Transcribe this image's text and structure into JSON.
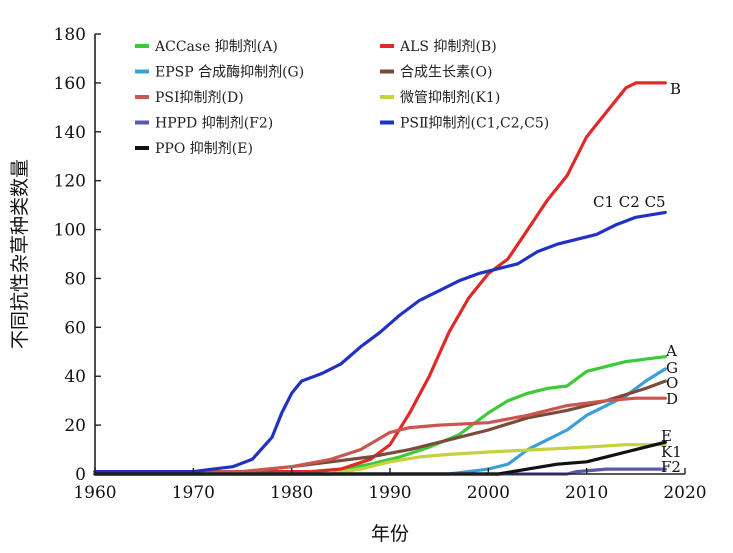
{
  "chart_data": {
    "type": "line",
    "title": "",
    "xlabel": "年份",
    "ylabel": "不同抗性杂草种类数量",
    "xlim": [
      1960,
      2020
    ],
    "ylim": [
      0,
      180
    ],
    "xticks": [
      "1960",
      "1970",
      "1980",
      "1990",
      "2000",
      "2010",
      "2020"
    ],
    "yticks": [
      "0",
      "20",
      "40",
      "60",
      "80",
      "100",
      "120",
      "140",
      "160",
      "180"
    ],
    "grid": false,
    "legend_position": "top",
    "series": [
      {
        "name": "ACCase 抑制剂(A)",
        "color": "#3ec93a",
        "end_label": "A",
        "points": [
          [
            1960,
            1
          ],
          [
            1982,
            1
          ],
          [
            1985,
            2
          ],
          [
            1988,
            4
          ],
          [
            1991,
            7
          ],
          [
            1994,
            11
          ],
          [
            1997,
            16
          ],
          [
            2000,
            25
          ],
          [
            2002,
            30
          ],
          [
            2004,
            33
          ],
          [
            2006,
            35
          ],
          [
            2008,
            36
          ],
          [
            2010,
            42
          ],
          [
            2012,
            44
          ],
          [
            2014,
            46
          ],
          [
            2016,
            47
          ],
          [
            2018,
            48
          ]
        ]
      },
      {
        "name": "ALS 抑制剂(B)",
        "color": "#e02a2a",
        "end_label": "B",
        "points": [
          [
            1960,
            1
          ],
          [
            1982,
            1
          ],
          [
            1985,
            2
          ],
          [
            1988,
            6
          ],
          [
            1990,
            12
          ],
          [
            1992,
            25
          ],
          [
            1994,
            40
          ],
          [
            1996,
            58
          ],
          [
            1998,
            72
          ],
          [
            2000,
            82
          ],
          [
            2002,
            88
          ],
          [
            2004,
            100
          ],
          [
            2006,
            112
          ],
          [
            2008,
            122
          ],
          [
            2010,
            138
          ],
          [
            2012,
            148
          ],
          [
            2014,
            158
          ],
          [
            2015,
            160
          ],
          [
            2018,
            160
          ]
        ]
      },
      {
        "name": "EPSP 合成酶抑制剂(G)",
        "color": "#3b9fd6",
        "end_label": "G",
        "points": [
          [
            1960,
            0
          ],
          [
            1996,
            0
          ],
          [
            1998,
            1
          ],
          [
            2000,
            2
          ],
          [
            2002,
            4
          ],
          [
            2004,
            10
          ],
          [
            2006,
            14
          ],
          [
            2008,
            18
          ],
          [
            2010,
            24
          ],
          [
            2012,
            28
          ],
          [
            2014,
            32
          ],
          [
            2016,
            38
          ],
          [
            2018,
            43
          ]
        ]
      },
      {
        "name": "合成生长素(O)",
        "color": "#7a4a3a",
        "end_label": "O",
        "points": [
          [
            1960,
            1
          ],
          [
            1975,
            1
          ],
          [
            1980,
            3
          ],
          [
            1984,
            5
          ],
          [
            1988,
            7
          ],
          [
            1992,
            10
          ],
          [
            1996,
            14
          ],
          [
            2000,
            18
          ],
          [
            2004,
            23
          ],
          [
            2008,
            26
          ],
          [
            2012,
            30
          ],
          [
            2016,
            35
          ],
          [
            2018,
            38
          ]
        ]
      },
      {
        "name": "PSⅠ抑制剂(D)",
        "color": "#c8574f",
        "end_label": "D",
        "points": [
          [
            1960,
            1
          ],
          [
            1975,
            1
          ],
          [
            1980,
            3
          ],
          [
            1984,
            6
          ],
          [
            1987,
            10
          ],
          [
            1990,
            17
          ],
          [
            1992,
            19
          ],
          [
            1995,
            20
          ],
          [
            2000,
            21
          ],
          [
            2004,
            24
          ],
          [
            2008,
            28
          ],
          [
            2012,
            30
          ],
          [
            2015,
            31
          ],
          [
            2018,
            31
          ]
        ]
      },
      {
        "name": "微管抑制剂(K1)",
        "color": "#c4d23c",
        "end_label": "K1",
        "points": [
          [
            1960,
            0
          ],
          [
            1984,
            0
          ],
          [
            1987,
            2
          ],
          [
            1990,
            5
          ],
          [
            1993,
            7
          ],
          [
            1996,
            8
          ],
          [
            2000,
            9
          ],
          [
            2005,
            10
          ],
          [
            2010,
            11
          ],
          [
            2014,
            12
          ],
          [
            2018,
            12
          ]
        ]
      },
      {
        "name": "HPPD 抑制剂(F2)",
        "color": "#5a5aa8",
        "end_label": "F2",
        "points": [
          [
            1960,
            0
          ],
          [
            2008,
            0
          ],
          [
            2009,
            1
          ],
          [
            2012,
            2
          ],
          [
            2015,
            2
          ],
          [
            2018,
            2
          ]
        ]
      },
      {
        "name": "PSⅡ抑制剂(C1,C2,C5)",
        "color": "#1f33c2",
        "end_label": "C1 C2 C5",
        "points": [
          [
            1960,
            1
          ],
          [
            1970,
            1
          ],
          [
            1972,
            2
          ],
          [
            1974,
            3
          ],
          [
            1976,
            6
          ],
          [
            1978,
            15
          ],
          [
            1979,
            25
          ],
          [
            1980,
            33
          ],
          [
            1981,
            38
          ],
          [
            1983,
            41
          ],
          [
            1985,
            45
          ],
          [
            1987,
            52
          ],
          [
            1989,
            58
          ],
          [
            1991,
            65
          ],
          [
            1993,
            71
          ],
          [
            1995,
            75
          ],
          [
            1997,
            79
          ],
          [
            1999,
            82
          ],
          [
            2001,
            84
          ],
          [
            2003,
            86
          ],
          [
            2005,
            91
          ],
          [
            2007,
            94
          ],
          [
            2009,
            96
          ],
          [
            2011,
            98
          ],
          [
            2013,
            102
          ],
          [
            2015,
            105
          ],
          [
            2018,
            107
          ]
        ]
      },
      {
        "name": "PPO 抑制剂(E)",
        "color": "#111111",
        "end_label": "E",
        "points": [
          [
            1960,
            0
          ],
          [
            2001,
            0
          ],
          [
            2004,
            2
          ],
          [
            2007,
            4
          ],
          [
            2010,
            5
          ],
          [
            2012,
            7
          ],
          [
            2014,
            9
          ],
          [
            2016,
            11
          ],
          [
            2018,
            13
          ]
        ]
      }
    ]
  }
}
